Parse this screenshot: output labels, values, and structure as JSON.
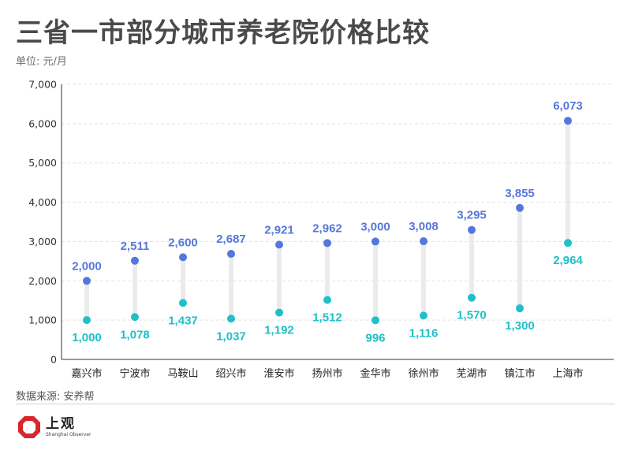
{
  "header": {
    "title": "三省一市部分城市养老院价格比较",
    "unit": "单位: 元/月"
  },
  "footer": {
    "source": "数据来源: 安养帮",
    "logo_cn": "上观",
    "logo_en": "Shanghai Observer"
  },
  "colors": {
    "high": "#5577dd",
    "low": "#1fc0c8",
    "connector": "#ebebeb",
    "grid": "#e3e3e3",
    "axis": "#333333"
  },
  "chart_data": {
    "type": "scatter",
    "title": "三省一市部分城市养老院价格比较",
    "categories": [
      "嘉兴市",
      "宁波市",
      "马鞍山",
      "绍兴市",
      "淮安市",
      "扬州市",
      "金华市",
      "徐州市",
      "芜湖市",
      "镇江市",
      "上海市"
    ],
    "series": [
      {
        "values": [
          2000,
          2511,
          2600,
          2687,
          2921,
          2962,
          3000,
          3008,
          3295,
          3855,
          6073
        ]
      },
      {
        "values": [
          1000,
          1078,
          1437,
          1037,
          1192,
          1512,
          996,
          1116,
          1570,
          1300,
          2964
        ]
      }
    ],
    "ylim": [
      0,
      7000
    ],
    "yticks": [
      "0",
      "1,000",
      "2,000",
      "3,000",
      "4,000",
      "5,000",
      "6,000",
      "7,000"
    ],
    "grid": true,
    "legend": false
  }
}
